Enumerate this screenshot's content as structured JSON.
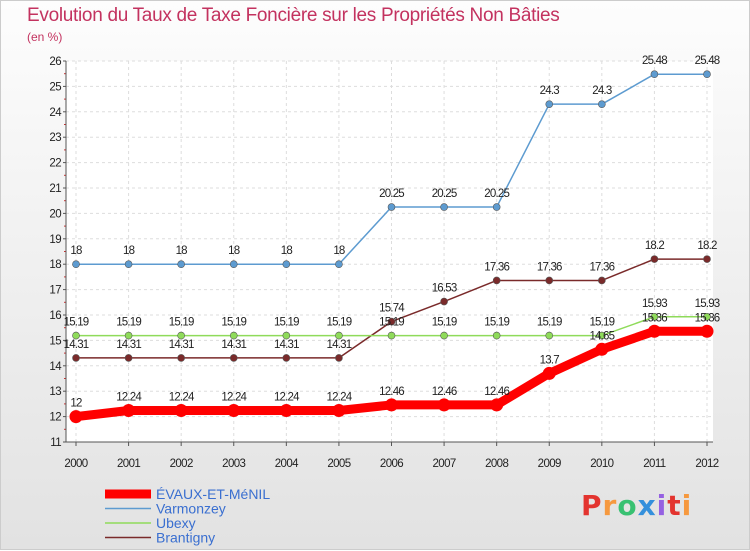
{
  "chart_data": {
    "type": "line",
    "title": "Evolution du Taux de Taxe Foncière sur les Propriétés Non Bâties",
    "ylabel": "(en %)",
    "xlabel": "",
    "x": [
      "2000",
      "2001",
      "2002",
      "2003",
      "2004",
      "2005",
      "2006",
      "2007",
      "2008",
      "2009",
      "2010",
      "2011",
      "2012"
    ],
    "ylim": [
      11,
      26
    ],
    "yticks": [
      "11",
      "12",
      "13",
      "14",
      "15",
      "16",
      "17",
      "18",
      "19",
      "20",
      "21",
      "22",
      "23",
      "24",
      "25",
      "26"
    ],
    "legend_position": "bottom-left",
    "series": [
      {
        "name": "ÉVAUX-ET-MéNIL",
        "color": "#ff0000",
        "values": [
          12,
          12.24,
          12.24,
          12.24,
          12.24,
          12.24,
          12.46,
          12.46,
          12.46,
          13.7,
          14.65,
          15.36,
          15.36
        ],
        "labels": [
          "12",
          "12.24",
          "12.24",
          "12.24",
          "12.24",
          "12.24",
          "12.46",
          "12.46",
          "12.46",
          "13.7",
          "14.65",
          "15.36",
          "15.36"
        ]
      },
      {
        "name": "Varmonzey",
        "color": "#5d9bd0",
        "values": [
          18,
          18,
          18,
          18,
          18,
          18,
          20.25,
          20.25,
          20.25,
          24.3,
          24.3,
          25.48,
          25.48
        ],
        "labels": [
          "18",
          "18",
          "18",
          "18",
          "18",
          "18",
          "20.25",
          "20.25",
          "20.25",
          "24.3",
          "24.3",
          "25.48",
          "25.48"
        ]
      },
      {
        "name": "Ubexy",
        "color": "#8fdb5a",
        "values": [
          15.19,
          15.19,
          15.19,
          15.19,
          15.19,
          15.19,
          15.19,
          15.19,
          15.19,
          15.19,
          15.19,
          15.93,
          15.93
        ],
        "labels": [
          "15.19",
          "15.19",
          "15.19",
          "15.19",
          "15.19",
          "15.19",
          "15.19",
          "15.19",
          "15.19",
          "15.19",
          "15.19",
          "15.93",
          "15.93"
        ]
      },
      {
        "name": "Brantigny",
        "color": "#7a2a2a",
        "values": [
          14.31,
          14.31,
          14.31,
          14.31,
          14.31,
          14.31,
          15.74,
          16.53,
          17.36,
          17.36,
          17.36,
          18.2,
          18.2
        ],
        "labels": [
          "14.31",
          "14.31",
          "14.31",
          "14.31",
          "14.31",
          "14.31",
          "15.74",
          "16.53",
          "17.36",
          "17.36",
          "17.36",
          "18.2",
          "18.2"
        ]
      }
    ]
  },
  "logo": {
    "letters": [
      "P",
      "r",
      "o",
      "x",
      "i",
      "t",
      "i"
    ],
    "colors": [
      "#e3342f",
      "#f6993f",
      "#38c172",
      "#3490dc",
      "#9561e2",
      "#e3342f",
      "#f6993f"
    ]
  }
}
